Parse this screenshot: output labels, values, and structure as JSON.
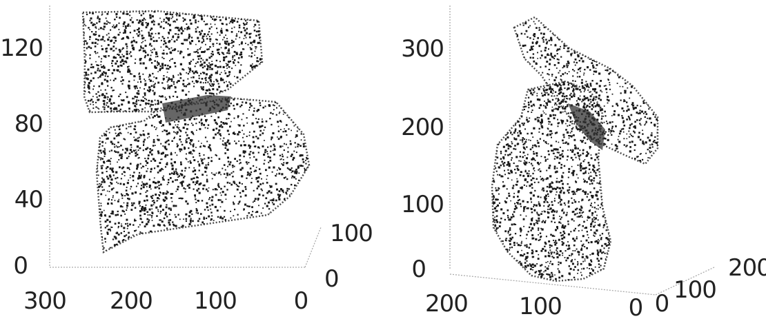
{
  "chart_data": [
    {
      "type": "scatter",
      "title": "",
      "xlabel": "",
      "ylabel": "",
      "zlabel": "",
      "x_ticks": [
        "300",
        "200",
        "100",
        "0"
      ],
      "y_ticks": [
        "0",
        "100"
      ],
      "z_ticks": [
        "0",
        "40",
        "80",
        "120"
      ],
      "xlim": [
        300,
        0
      ],
      "ylim": [
        0,
        100
      ],
      "zlim": [
        0,
        135
      ],
      "grid": false,
      "series": [
        {
          "description_id": "upper-part",
          "x": [
            270,
            240,
            210,
            180,
            150,
            120,
            100,
            90,
            110,
            140,
            170,
            200,
            230,
            260,
            275
          ],
          "z": [
            135,
            134,
            133,
            132,
            131,
            126,
            112,
            100,
            92,
            90,
            91,
            89,
            87,
            88,
            110
          ]
        },
        {
          "description_id": "lower-part",
          "x": [
            260,
            230,
            200,
            170,
            140,
            110,
            90,
            70,
            55,
            60,
            90,
            130,
            170,
            210,
            240,
            255
          ],
          "z": [
            75,
            80,
            82,
            85,
            88,
            90,
            93,
            90,
            75,
            52,
            32,
            24,
            18,
            12,
            8,
            40
          ]
        }
      ]
    },
    {
      "type": "scatter",
      "title": "",
      "xlabel": "",
      "ylabel": "",
      "zlabel": "",
      "x_ticks": [
        "200",
        "100",
        "0"
      ],
      "y_ticks": [
        "0",
        "100",
        "200"
      ],
      "z_ticks": [
        "0",
        "100",
        "200",
        "300"
      ],
      "xlim": [
        200,
        0
      ],
      "ylim": [
        0,
        200
      ],
      "zlim": [
        0,
        340
      ],
      "grid": false,
      "series": [
        {
          "description_id": "tall-part",
          "x": [
            130,
            110,
            90,
            70,
            60,
            55,
            60,
            70,
            80,
            95,
            110,
            120,
            128
          ],
          "z": [
            200,
            160,
            120,
            80,
            40,
            10,
            0,
            5,
            30,
            80,
            140,
            190,
            215
          ]
        },
        {
          "description_id": "angled-part",
          "x": [
            120,
            100,
            80,
            60,
            50,
            45,
            55,
            75,
            95,
            110
          ],
          "z": [
            330,
            300,
            270,
            240,
            210,
            185,
            200,
            240,
            280,
            315
          ]
        }
      ]
    }
  ],
  "colors": {
    "points": "#1a1a1a",
    "band": "#333333",
    "axis": "#aaaaaa"
  }
}
